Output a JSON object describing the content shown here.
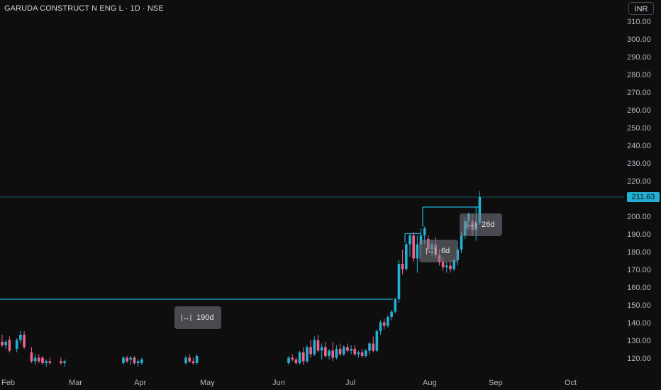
{
  "header": {
    "title": "GARUDA CONSTRUCT N ENG L · 1D · NSE",
    "currency_label": "INR"
  },
  "price_tag": "211.63",
  "colors": {
    "up": "#22b1d4",
    "down": "#f0628c",
    "background": "#0e0e0f",
    "last_price_line": "#22b1d4"
  },
  "measurements": [
    {
      "label": "190d",
      "icon": "range-icon"
    },
    {
      "label": "6d",
      "icon": "range-icon"
    },
    {
      "label": "26d",
      "icon": "range-icon"
    }
  ],
  "chart_data": {
    "type": "candlestick",
    "y_ticks": [
      "310.00",
      "300.00",
      "290.00",
      "280.00",
      "270.00",
      "260.00",
      "250.00",
      "240.00",
      "230.00",
      "220.00",
      "200.00",
      "190.00",
      "180.00",
      "170.00",
      "160.00",
      "150.00",
      "140.00",
      "130.00",
      "120.00"
    ],
    "x_ticks": [
      "Feb",
      "Mar",
      "Apr",
      "May",
      "Jun",
      "Jul",
      "Aug",
      "Sep",
      "Oct"
    ],
    "ylim": [
      115,
      317
    ],
    "last_price": 211.63,
    "levels": [
      {
        "value": 154,
        "from": "Jan",
        "to": "Jul-20"
      },
      {
        "value": 191,
        "from": "Jul-23",
        "to": "Jul-28"
      },
      {
        "value": 206,
        "from": "Jul-30",
        "to": "Aug-20"
      }
    ],
    "candles": [
      {
        "o": 130,
        "h": 134,
        "l": 127,
        "c": 128
      },
      {
        "o": 128,
        "h": 131,
        "l": 126,
        "c": 130
      },
      {
        "o": 131,
        "h": 133,
        "l": 124,
        "c": 125
      },
      {
        "o": 126,
        "h": 132,
        "l": 124,
        "c": 131
      },
      {
        "o": 131,
        "h": 136,
        "l": 129,
        "c": 134
      },
      {
        "o": 134,
        "h": 136,
        "l": 126,
        "c": 127
      },
      {
        "o": 124,
        "h": 127,
        "l": 118,
        "c": 119
      },
      {
        "o": 119,
        "h": 123,
        "l": 117,
        "c": 121
      },
      {
        "o": 121,
        "h": 123,
        "l": 118,
        "c": 119
      },
      {
        "o": 121,
        "h": 122,
        "l": 117,
        "c": 118
      },
      {
        "o": 118,
        "h": 120,
        "l": 116,
        "c": 119
      },
      {
        "o": 119,
        "h": 121,
        "l": 117,
        "c": 118
      },
      {
        "o": 119,
        "h": 121,
        "l": 117,
        "c": 118
      },
      {
        "o": 118,
        "h": 120,
        "l": 116,
        "c": 119
      },
      {
        "o": 118,
        "h": 122,
        "l": 117,
        "c": 121
      },
      {
        "o": 121,
        "h": 122,
        "l": 118,
        "c": 119
      },
      {
        "o": 120,
        "h": 122,
        "l": 117,
        "c": 121
      },
      {
        "o": 121,
        "h": 122,
        "l": 117,
        "c": 118
      },
      {
        "o": 118,
        "h": 120,
        "l": 116,
        "c": 119
      },
      {
        "o": 118,
        "h": 121,
        "l": 117,
        "c": 120
      },
      {
        "o": 118,
        "h": 122,
        "l": 117,
        "c": 121
      },
      {
        "o": 121,
        "h": 123,
        "l": 118,
        "c": 119
      },
      {
        "o": 119,
        "h": 121,
        "l": 117,
        "c": 118
      },
      {
        "o": 118,
        "h": 123,
        "l": 117,
        "c": 122
      },
      {
        "o": 118,
        "h": 122,
        "l": 117,
        "c": 121
      },
      {
        "o": 121,
        "h": 123,
        "l": 119,
        "c": 120
      },
      {
        "o": 120,
        "h": 121,
        "l": 117,
        "c": 118
      },
      {
        "o": 118,
        "h": 125,
        "l": 117,
        "c": 124
      },
      {
        "o": 124,
        "h": 127,
        "l": 117,
        "c": 119
      },
      {
        "o": 119,
        "h": 128,
        "l": 118,
        "c": 127
      },
      {
        "o": 127,
        "h": 131,
        "l": 121,
        "c": 123
      },
      {
        "o": 123,
        "h": 133,
        "l": 122,
        "c": 131
      },
      {
        "o": 131,
        "h": 134,
        "l": 124,
        "c": 125
      },
      {
        "o": 125,
        "h": 129,
        "l": 120,
        "c": 127
      },
      {
        "o": 127,
        "h": 130,
        "l": 121,
        "c": 122
      },
      {
        "o": 122,
        "h": 126,
        "l": 120,
        "c": 125
      },
      {
        "o": 125,
        "h": 130,
        "l": 119,
        "c": 121
      },
      {
        "o": 121,
        "h": 128,
        "l": 120,
        "c": 126
      },
      {
        "o": 126,
        "h": 129,
        "l": 122,
        "c": 123
      },
      {
        "o": 123,
        "h": 128,
        "l": 122,
        "c": 127
      },
      {
        "o": 127,
        "h": 129,
        "l": 124,
        "c": 125
      },
      {
        "o": 125,
        "h": 128,
        "l": 123,
        "c": 126
      },
      {
        "o": 126,
        "h": 128,
        "l": 122,
        "c": 123
      },
      {
        "o": 123,
        "h": 125,
        "l": 121,
        "c": 124
      },
      {
        "o": 124,
        "h": 126,
        "l": 121,
        "c": 122
      },
      {
        "o": 122,
        "h": 126,
        "l": 121,
        "c": 125
      },
      {
        "o": 125,
        "h": 130,
        "l": 123,
        "c": 129
      },
      {
        "o": 129,
        "h": 133,
        "l": 124,
        "c": 125
      },
      {
        "o": 125,
        "h": 137,
        "l": 124,
        "c": 136
      },
      {
        "o": 136,
        "h": 142,
        "l": 134,
        "c": 141
      },
      {
        "o": 141,
        "h": 143,
        "l": 137,
        "c": 139
      },
      {
        "o": 139,
        "h": 145,
        "l": 138,
        "c": 144
      },
      {
        "o": 144,
        "h": 148,
        "l": 142,
        "c": 147
      },
      {
        "o": 147,
        "h": 155,
        "l": 146,
        "c": 154
      },
      {
        "o": 154,
        "h": 176,
        "l": 152,
        "c": 174
      },
      {
        "o": 174,
        "h": 182,
        "l": 168,
        "c": 171
      },
      {
        "o": 171,
        "h": 186,
        "l": 170,
        "c": 185
      },
      {
        "o": 185,
        "h": 191,
        "l": 178,
        "c": 190
      },
      {
        "o": 190,
        "h": 192,
        "l": 175,
        "c": 177
      },
      {
        "o": 177,
        "h": 190,
        "l": 169,
        "c": 185
      },
      {
        "o": 185,
        "h": 194,
        "l": 178,
        "c": 190
      },
      {
        "o": 190,
        "h": 195,
        "l": 185,
        "c": 194
      },
      {
        "o": 188,
        "h": 190,
        "l": 180,
        "c": 182
      },
      {
        "o": 182,
        "h": 187,
        "l": 178,
        "c": 185
      },
      {
        "o": 185,
        "h": 189,
        "l": 177,
        "c": 179
      },
      {
        "o": 179,
        "h": 182,
        "l": 173,
        "c": 175
      },
      {
        "o": 175,
        "h": 178,
        "l": 170,
        "c": 172
      },
      {
        "o": 172,
        "h": 175,
        "l": 169,
        "c": 173
      },
      {
        "o": 173,
        "h": 176,
        "l": 169,
        "c": 171
      },
      {
        "o": 171,
        "h": 177,
        "l": 170,
        "c": 176
      },
      {
        "o": 176,
        "h": 183,
        "l": 173,
        "c": 182
      },
      {
        "o": 182,
        "h": 192,
        "l": 180,
        "c": 190
      },
      {
        "o": 190,
        "h": 200,
        "l": 188,
        "c": 198
      },
      {
        "o": 198,
        "h": 203,
        "l": 193,
        "c": 202
      },
      {
        "o": 198,
        "h": 202,
        "l": 190,
        "c": 193
      },
      {
        "o": 193,
        "h": 206,
        "l": 187,
        "c": 197
      },
      {
        "o": 197,
        "h": 215,
        "l": 196,
        "c": 211.63
      }
    ],
    "candle_slots": [
      0,
      1,
      2,
      4,
      5,
      6,
      8,
      9,
      10,
      11,
      12,
      13,
      16,
      17,
      33,
      34,
      35,
      36,
      37,
      38,
      50,
      51,
      52,
      53,
      78,
      79,
      80,
      81,
      82,
      83,
      84,
      85,
      86,
      87,
      88,
      89,
      90,
      91,
      92,
      93,
      94,
      95,
      96,
      97,
      98,
      99,
      100,
      101,
      102,
      103,
      104,
      105,
      106,
      107,
      108,
      109,
      110,
      111,
      112,
      113,
      114,
      115,
      116,
      117,
      118,
      119,
      120,
      121,
      122,
      123,
      124,
      125,
      126,
      127,
      128,
      129,
      130
    ],
    "annotations": [
      {
        "label": "190d",
        "from": "Jan",
        "to": "Jul-20"
      },
      {
        "label": "6d",
        "from": "Jul-23",
        "to": "Jul-30"
      },
      {
        "label": "26d",
        "from": "Jul-30",
        "to": "Aug-26"
      }
    ]
  }
}
